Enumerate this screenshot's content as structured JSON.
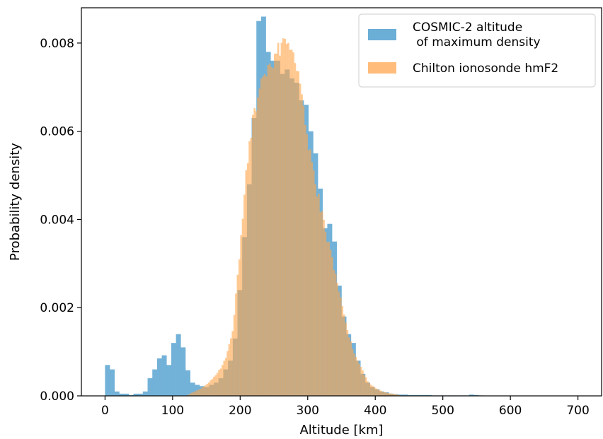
{
  "chart_data": {
    "type": "histogram",
    "xlabel": "Altitude [km]",
    "ylabel": "Probability density",
    "xlim": [
      -35,
      735
    ],
    "ylim": [
      0,
      0.0088
    ],
    "xticks": [
      0,
      100,
      200,
      300,
      400,
      500,
      600,
      700
    ],
    "yticks": [
      0.0,
      0.002,
      0.004,
      0.006,
      0.008
    ],
    "ytick_labels": [
      "0.000",
      "0.002",
      "0.004",
      "0.006",
      "0.008"
    ],
    "grid": false,
    "legend_position": "top-right",
    "series": [
      {
        "name": "COSMIC-2 altitude\n of maximum density",
        "color": "#6baed6",
        "bin_width": 7,
        "bins": [
          [
            0,
            0.0007
          ],
          [
            7,
            0.0006
          ],
          [
            14,
            0.0001
          ],
          [
            21,
            5e-05
          ],
          [
            28,
            5e-05
          ],
          [
            35,
            2e-05
          ],
          [
            42,
            5e-05
          ],
          [
            49,
            5e-05
          ],
          [
            56,
            0.0001
          ],
          [
            63,
            0.0004
          ],
          [
            70,
            0.0006
          ],
          [
            77,
            0.00085
          ],
          [
            84,
            0.00092
          ],
          [
            91,
            0.0007
          ],
          [
            98,
            0.0012
          ],
          [
            105,
            0.0014
          ],
          [
            112,
            0.0011
          ],
          [
            119,
            0.00058
          ],
          [
            126,
            0.0003
          ],
          [
            133,
            0.00025
          ],
          [
            140,
            0.00022
          ],
          [
            147,
            0.0002
          ],
          [
            154,
            0.00025
          ],
          [
            161,
            0.0003
          ],
          [
            168,
            0.0004
          ],
          [
            175,
            0.0006
          ],
          [
            182,
            0.0008
          ],
          [
            189,
            0.0013
          ],
          [
            196,
            0.0024
          ],
          [
            203,
            0.0036
          ],
          [
            210,
            0.0048
          ],
          [
            217,
            0.0063
          ],
          [
            224,
            0.0085
          ],
          [
            231,
            0.0086
          ],
          [
            238,
            0.0078
          ],
          [
            245,
            0.0076
          ],
          [
            252,
            0.0076
          ],
          [
            259,
            0.0073
          ],
          [
            266,
            0.0074
          ],
          [
            273,
            0.0072
          ],
          [
            280,
            0.0071
          ],
          [
            287,
            0.0067
          ],
          [
            294,
            0.0066
          ],
          [
            301,
            0.006
          ],
          [
            308,
            0.0055
          ],
          [
            315,
            0.0047
          ],
          [
            322,
            0.0038
          ],
          [
            329,
            0.0039
          ],
          [
            336,
            0.0035
          ],
          [
            343,
            0.0025
          ],
          [
            350,
            0.0018
          ],
          [
            357,
            0.0014
          ],
          [
            364,
            0.0012
          ],
          [
            371,
            0.0008
          ],
          [
            378,
            0.0005
          ],
          [
            385,
            0.0003
          ],
          [
            392,
            0.0002
          ],
          [
            399,
            0.00015
          ],
          [
            406,
            0.0001
          ],
          [
            413,
            8e-05
          ],
          [
            420,
            5e-05
          ],
          [
            427,
            4e-05
          ],
          [
            434,
            3e-05
          ],
          [
            441,
            3e-05
          ],
          [
            448,
            2e-05
          ],
          [
            455,
            2e-05
          ],
          [
            462,
            2e-05
          ],
          [
            469,
            2e-05
          ],
          [
            476,
            2e-05
          ],
          [
            483,
            1e-05
          ],
          [
            490,
            1e-05
          ],
          [
            497,
            1e-05
          ],
          [
            504,
            1e-05
          ],
          [
            511,
            1e-05
          ],
          [
            518,
            1e-05
          ],
          [
            525,
            1e-05
          ],
          [
            532,
            1e-05
          ],
          [
            539,
            3e-05
          ],
          [
            546,
            2e-05
          ],
          [
            553,
            1e-05
          ]
        ]
      },
      {
        "name": "Chilton ionosonde hmF2",
        "color": "#ffa64d",
        "bin_width": 2.5,
        "density_profile": [
          [
            120,
            0.0
          ],
          [
            130,
            8e-05
          ],
          [
            140,
            0.00015
          ],
          [
            150,
            0.00025
          ],
          [
            160,
            0.0004
          ],
          [
            170,
            0.0006
          ],
          [
            180,
            0.0009
          ],
          [
            190,
            0.0016
          ],
          [
            200,
            0.0034
          ],
          [
            210,
            0.0052
          ],
          [
            220,
            0.0064
          ],
          [
            230,
            0.007
          ],
          [
            240,
            0.0074
          ],
          [
            250,
            0.0076
          ],
          [
            260,
            0.0079
          ],
          [
            265,
            0.0081
          ],
          [
            270,
            0.0081
          ],
          [
            280,
            0.0077
          ],
          [
            290,
            0.0069
          ],
          [
            300,
            0.0058
          ],
          [
            310,
            0.0049
          ],
          [
            320,
            0.0042
          ],
          [
            330,
            0.0035
          ],
          [
            340,
            0.0028
          ],
          [
            350,
            0.0021
          ],
          [
            360,
            0.0014
          ],
          [
            370,
            0.0009
          ],
          [
            380,
            0.0006
          ],
          [
            390,
            0.0003
          ],
          [
            400,
            0.00018
          ],
          [
            410,
            0.0001
          ],
          [
            420,
            6e-05
          ],
          [
            430,
            4e-05
          ],
          [
            440,
            0.0
          ],
          [
            700,
            0.0
          ]
        ]
      }
    ]
  }
}
